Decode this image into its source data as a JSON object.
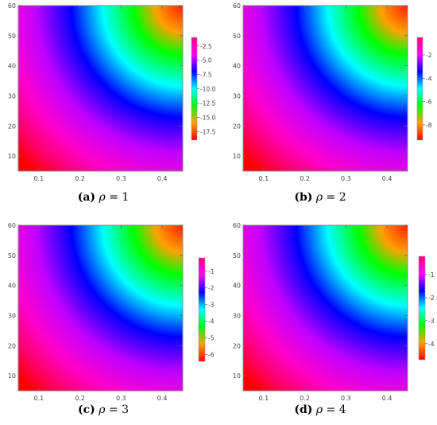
{
  "panels": [
    {
      "caption_label": "(a)",
      "caption_symbol": "ρ",
      "caption_relation": " = ",
      "caption_value": "1",
      "colorbar": {
        "ticks": [
          "-2.5",
          "-5.0",
          "-7.5",
          "-10.0",
          "-12.5",
          "-15.0",
          "-17.5"
        ]
      }
    },
    {
      "caption_label": "(b)",
      "caption_symbol": "ρ",
      "caption_relation": " = ",
      "caption_value": "2",
      "colorbar": {
        "ticks": [
          "-2",
          "-4",
          "-6",
          "-8"
        ]
      }
    },
    {
      "caption_label": "(c)",
      "caption_symbol": "ρ",
      "caption_relation": " = ",
      "caption_value": "3",
      "colorbar": {
        "ticks": [
          "-1",
          "-2",
          "-3",
          "-4",
          "-5",
          "-6"
        ]
      }
    },
    {
      "caption_label": "(d)",
      "caption_symbol": "ρ",
      "caption_relation": " = ",
      "caption_value": "4",
      "colorbar": {
        "ticks": [
          "-1",
          "-2",
          "-3",
          "-4"
        ]
      }
    }
  ],
  "colors": {
    "scale_from_high_to_low": [
      "#ff0080",
      "#ff00ff",
      "#0000ff",
      "#00ffff",
      "#00ff00",
      "#ffa000",
      "#ff0000"
    ],
    "frame": "#888888",
    "tick_text": "#444444"
  },
  "chart_data": [
    {
      "type": "heatmap",
      "x_ticks": [
        "0.1",
        "0.2",
        "0.3",
        "0.4"
      ],
      "x_tick_values": [
        0.1,
        0.2,
        0.3,
        0.4
      ],
      "xlim": [
        0.05,
        0.45
      ],
      "y_ticks": [
        "10",
        "20",
        "30",
        "40",
        "50",
        "60"
      ],
      "y_tick_values": [
        10,
        20,
        30,
        40,
        50,
        60
      ],
      "ylim": [
        5,
        60
      ],
      "colorbar_ticks": [
        -2.5,
        -5.0,
        -7.5,
        -10.0,
        -12.5,
        -15.0,
        -17.5
      ],
      "colorbar_range": [
        -19,
        -1
      ],
      "values_increase_toward": "lower-left",
      "legend_position": "right"
    },
    {
      "type": "heatmap",
      "x_ticks": [
        "0.1",
        "0.2",
        "0.3",
        "0.4"
      ],
      "x_tick_values": [
        0.1,
        0.2,
        0.3,
        0.4
      ],
      "xlim": [
        0.05,
        0.45
      ],
      "y_ticks": [
        "10",
        "20",
        "30",
        "40",
        "50",
        "60"
      ],
      "y_tick_values": [
        10,
        20,
        30,
        40,
        50,
        60
      ],
      "ylim": [
        5,
        60
      ],
      "colorbar_ticks": [
        -2,
        -4,
        -6,
        -8
      ],
      "colorbar_range": [
        -9.3,
        -0.5
      ],
      "values_increase_toward": "lower-left",
      "legend_position": "right"
    },
    {
      "type": "heatmap",
      "x_ticks": [
        "0.1",
        "0.2",
        "0.3",
        "0.4"
      ],
      "x_tick_values": [
        0.1,
        0.2,
        0.3,
        0.4
      ],
      "xlim": [
        0.05,
        0.45
      ],
      "y_ticks": [
        "10",
        "20",
        "30",
        "40",
        "50",
        "60"
      ],
      "y_tick_values": [
        10,
        20,
        30,
        40,
        50,
        60
      ],
      "ylim": [
        5,
        60
      ],
      "colorbar_ticks": [
        -1,
        -2,
        -3,
        -4,
        -5,
        -6
      ],
      "colorbar_range": [
        -6.4,
        -0.2
      ],
      "values_increase_toward": "lower-left",
      "legend_position": "right"
    },
    {
      "type": "heatmap",
      "x_ticks": [
        "0.1",
        "0.2",
        "0.3",
        "0.4"
      ],
      "x_tick_values": [
        0.1,
        0.2,
        0.3,
        0.4
      ],
      "xlim": [
        0.05,
        0.45
      ],
      "y_ticks": [
        "10",
        "20",
        "30",
        "40",
        "50",
        "60"
      ],
      "y_tick_values": [
        10,
        20,
        30,
        40,
        50,
        60
      ],
      "ylim": [
        5,
        60
      ],
      "colorbar_ticks": [
        -1,
        -2,
        -3,
        -4
      ],
      "colorbar_range": [
        -4.7,
        -0.2
      ],
      "values_increase_toward": "lower-left",
      "legend_position": "right"
    }
  ]
}
